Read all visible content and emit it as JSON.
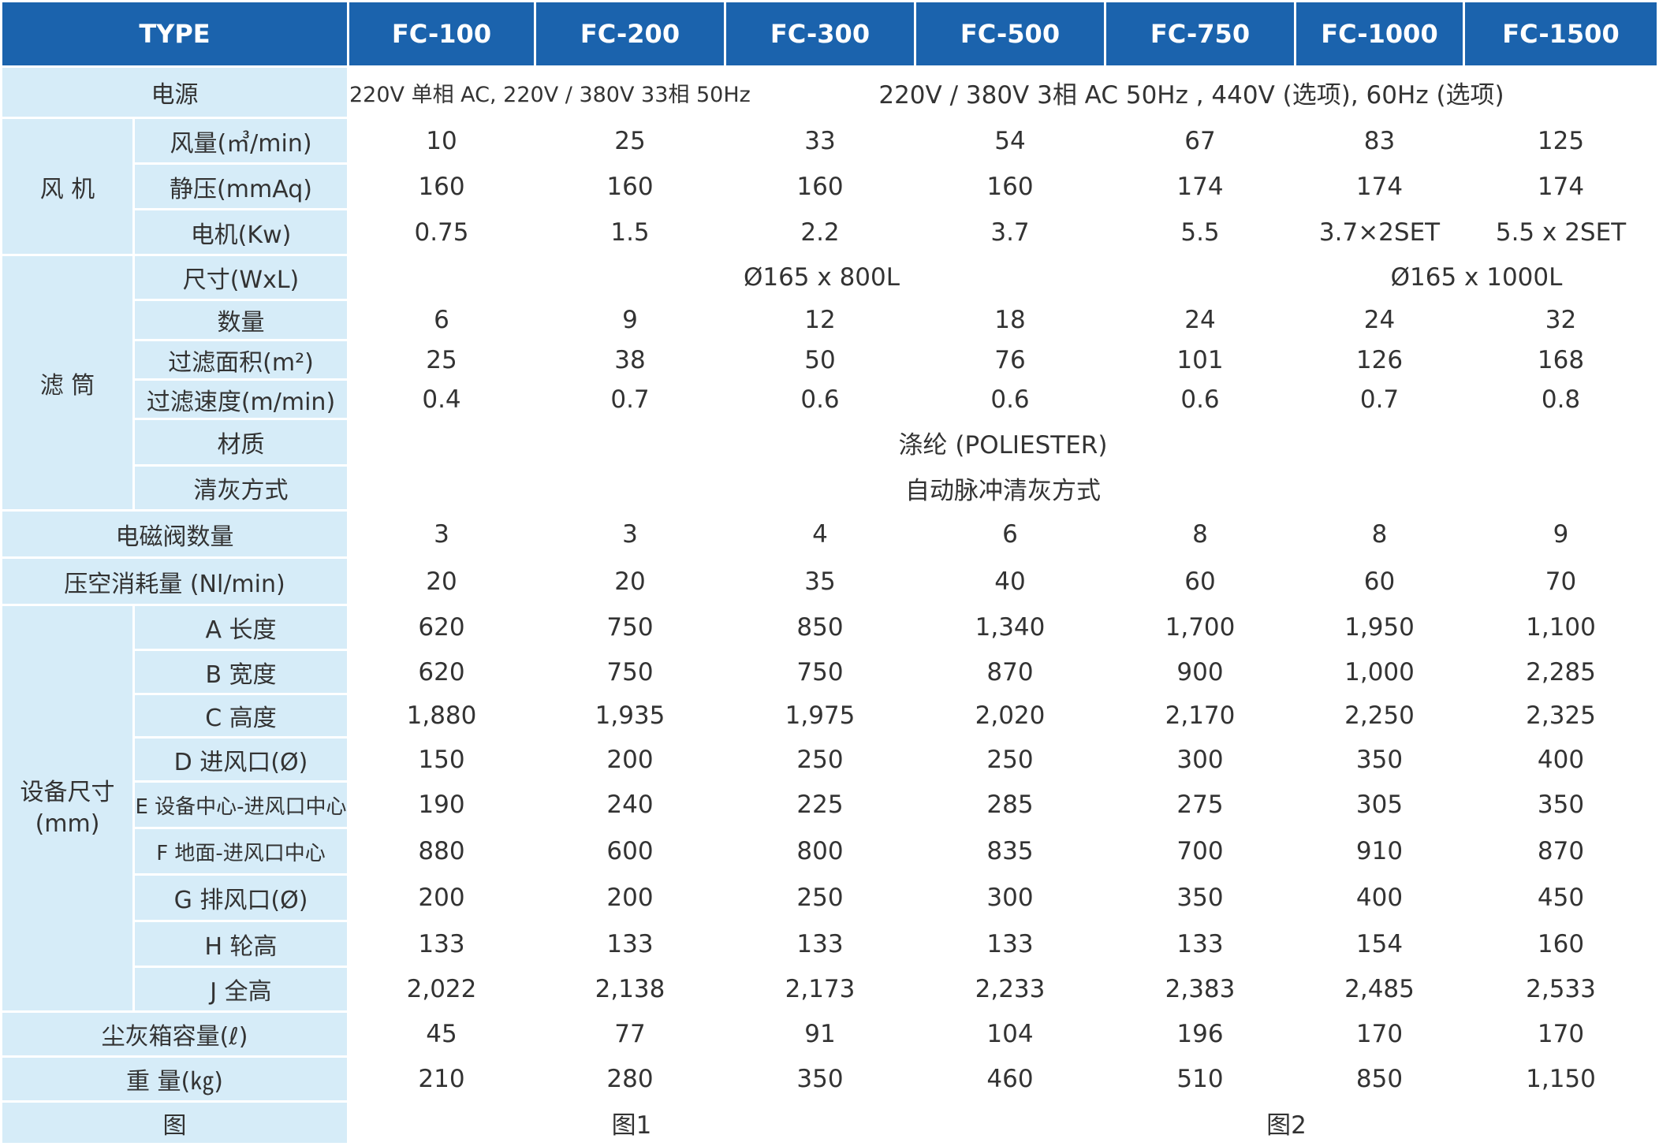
{
  "header": {
    "type_label": "TYPE",
    "models": [
      "FC-100",
      "FC-200",
      "FC-300",
      "FC-500",
      "FC-750",
      "FC-1000",
      "FC-1500"
    ]
  },
  "power": {
    "label": "电源",
    "value_a": "220V 单相 AC, 220V / 380V 33相 50Hz",
    "value_b": "220V / 380V 3相 AC 50Hz , 440V (选项), 60Hz (选项)"
  },
  "fan": {
    "group_label": "风 机",
    "rows": [
      {
        "label": "风量(㎥/min)",
        "values": [
          "10",
          "25",
          "33",
          "54",
          "67",
          "83",
          "125"
        ]
      },
      {
        "label": "静压(mmAq)",
        "values": [
          "160",
          "160",
          "160",
          "160",
          "174",
          "174",
          "174"
        ]
      },
      {
        "label": "电机(Kw)",
        "values": [
          "0.75",
          "1.5",
          "2.2",
          "3.7",
          "5.5",
          "3.7×2SET",
          "5.5 x 2SET"
        ]
      }
    ]
  },
  "filter": {
    "group_label": "滤 筒",
    "size_label": "尺寸(WxL)",
    "size_a": "Ø165 x 800L",
    "size_b": "Ø165 x 1000L",
    "rows": [
      {
        "label": "数量",
        "values": [
          "6",
          "9",
          "12",
          "18",
          "24",
          "24",
          "32"
        ]
      },
      {
        "label": "过滤面积(m²)",
        "values": [
          "25",
          "38",
          "50",
          "76",
          "101",
          "126",
          "168"
        ]
      },
      {
        "label": "过滤速度(m/min)",
        "values": [
          "0.4",
          "0.7",
          "0.6",
          "0.6",
          "0.6",
          "0.7",
          "0.8"
        ]
      }
    ],
    "material_label": "材质",
    "material_value": "涤纶 (POLIESTER)",
    "cleaning_label": "清灰方式",
    "cleaning_value": "自动脉冲清灰方式"
  },
  "valves": {
    "label": "电磁阀数量",
    "values": [
      "3",
      "3",
      "4",
      "6",
      "8",
      "8",
      "9"
    ]
  },
  "air": {
    "label": "压空消耗量 (Nl/min)",
    "values": [
      "20",
      "20",
      "35",
      "40",
      "60",
      "60",
      "70"
    ]
  },
  "dims": {
    "group_label_1": "设备尺寸",
    "group_label_2": "(mm)",
    "rows": [
      {
        "label": "A 长度",
        "values": [
          "620",
          "750",
          "850",
          "1,340",
          "1,700",
          "1,950",
          "1,100"
        ]
      },
      {
        "label": "B 宽度",
        "values": [
          "620",
          "750",
          "750",
          "870",
          "900",
          "1,000",
          "2,285"
        ]
      },
      {
        "label": "C 高度",
        "values": [
          "1,880",
          "1,935",
          "1,975",
          "2,020",
          "2,170",
          "2,250",
          "2,325"
        ]
      },
      {
        "label": "D 进风口(Ø)",
        "values": [
          "150",
          "200",
          "250",
          "250",
          "300",
          "350",
          "400"
        ]
      },
      {
        "label": "E 设备中心-进风口中心",
        "values": [
          "190",
          "240",
          "225",
          "285",
          "275",
          "305",
          "350"
        ]
      },
      {
        "label": "F 地面-进风口中心",
        "values": [
          "880",
          "600",
          "800",
          "835",
          "700",
          "910",
          "870"
        ]
      },
      {
        "label": "G 排风口(Ø)",
        "values": [
          "200",
          "200",
          "250",
          "300",
          "350",
          "400",
          "450"
        ]
      },
      {
        "label": "H 轮高",
        "values": [
          "133",
          "133",
          "133",
          "133",
          "133",
          "154",
          "160"
        ]
      },
      {
        "label": "J 全高",
        "values": [
          "2,022",
          "2,138",
          "2,173",
          "2,233",
          "2,383",
          "2,485",
          "2,533"
        ]
      }
    ]
  },
  "dust": {
    "label": "尘灰箱容量(ℓ)",
    "values": [
      "45",
      "77",
      "91",
      "104",
      "196",
      "170",
      "170"
    ]
  },
  "weight": {
    "label": "重 量(㎏)",
    "values": [
      "210",
      "280",
      "350",
      "460",
      "510",
      "850",
      "1,150"
    ]
  },
  "figure": {
    "label": "图",
    "fig1": "图1",
    "fig2": "图2"
  }
}
